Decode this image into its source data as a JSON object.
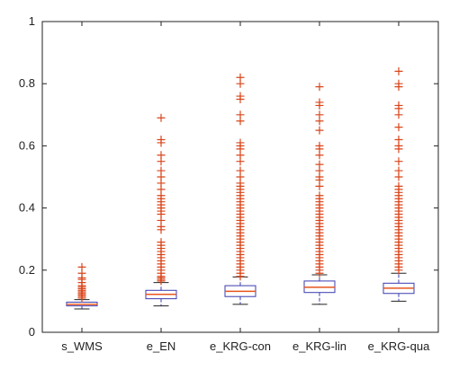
{
  "chart_data": {
    "type": "boxplot",
    "title": "",
    "xlabel": "",
    "ylabel": "",
    "ylim": [
      0,
      1
    ],
    "yticks": [
      0,
      0.2,
      0.4,
      0.6,
      0.8,
      1
    ],
    "ytick_labels": [
      "0",
      "0.2",
      "0.4",
      "0.6",
      "0.8",
      "1"
    ],
    "grid": false,
    "colors": {
      "box": "#3b3bb0",
      "median": "#e8541e",
      "outlier": "#d9461b",
      "axis": "#222222"
    },
    "categories": [
      "s_WMS",
      "e_EN",
      "e_KRG-con",
      "e_KRG-lin",
      "e_KRG-qua"
    ],
    "boxes": [
      {
        "whisker_low": 0.075,
        "q1": 0.085,
        "median": 0.09,
        "q3": 0.097,
        "whisker_high": 0.105,
        "outliers": [
          0.11,
          0.115,
          0.12,
          0.125,
          0.13,
          0.135,
          0.14,
          0.145,
          0.15,
          0.16,
          0.17,
          0.175,
          0.19,
          0.21
        ]
      },
      {
        "whisker_low": 0.085,
        "q1": 0.108,
        "median": 0.122,
        "q3": 0.135,
        "whisker_high": 0.16,
        "outliers": [
          0.165,
          0.17,
          0.175,
          0.18,
          0.19,
          0.2,
          0.21,
          0.22,
          0.23,
          0.24,
          0.25,
          0.26,
          0.27,
          0.28,
          0.29,
          0.33,
          0.34,
          0.36,
          0.38,
          0.39,
          0.4,
          0.41,
          0.42,
          0.43,
          0.44,
          0.46,
          0.48,
          0.5,
          0.52,
          0.55,
          0.57,
          0.61,
          0.62,
          0.69
        ]
      },
      {
        "whisker_low": 0.09,
        "q1": 0.115,
        "median": 0.132,
        "q3": 0.15,
        "whisker_high": 0.178,
        "outliers": [
          0.18,
          0.19,
          0.2,
          0.21,
          0.22,
          0.23,
          0.24,
          0.25,
          0.26,
          0.27,
          0.28,
          0.29,
          0.3,
          0.31,
          0.32,
          0.33,
          0.34,
          0.35,
          0.36,
          0.37,
          0.38,
          0.39,
          0.4,
          0.41,
          0.42,
          0.43,
          0.44,
          0.45,
          0.46,
          0.47,
          0.48,
          0.5,
          0.52,
          0.55,
          0.57,
          0.59,
          0.6,
          0.61,
          0.68,
          0.7,
          0.75,
          0.76,
          0.8,
          0.82
        ]
      },
      {
        "whisker_low": 0.09,
        "q1": 0.128,
        "median": 0.145,
        "q3": 0.165,
        "whisker_high": 0.185,
        "outliers": [
          0.19,
          0.2,
          0.21,
          0.22,
          0.23,
          0.24,
          0.25,
          0.26,
          0.27,
          0.28,
          0.29,
          0.3,
          0.31,
          0.32,
          0.33,
          0.34,
          0.35,
          0.36,
          0.37,
          0.38,
          0.39,
          0.4,
          0.41,
          0.42,
          0.43,
          0.44,
          0.47,
          0.49,
          0.5,
          0.52,
          0.54,
          0.57,
          0.59,
          0.6,
          0.65,
          0.68,
          0.7,
          0.73,
          0.74,
          0.79
        ]
      },
      {
        "whisker_low": 0.1,
        "q1": 0.125,
        "median": 0.142,
        "q3": 0.158,
        "whisker_high": 0.19,
        "outliers": [
          0.2,
          0.21,
          0.22,
          0.23,
          0.24,
          0.25,
          0.26,
          0.27,
          0.28,
          0.29,
          0.3,
          0.31,
          0.32,
          0.33,
          0.34,
          0.35,
          0.36,
          0.37,
          0.38,
          0.39,
          0.4,
          0.41,
          0.42,
          0.43,
          0.44,
          0.45,
          0.46,
          0.47,
          0.5,
          0.52,
          0.55,
          0.59,
          0.6,
          0.62,
          0.66,
          0.7,
          0.72,
          0.73,
          0.79,
          0.8,
          0.84
        ]
      }
    ]
  }
}
